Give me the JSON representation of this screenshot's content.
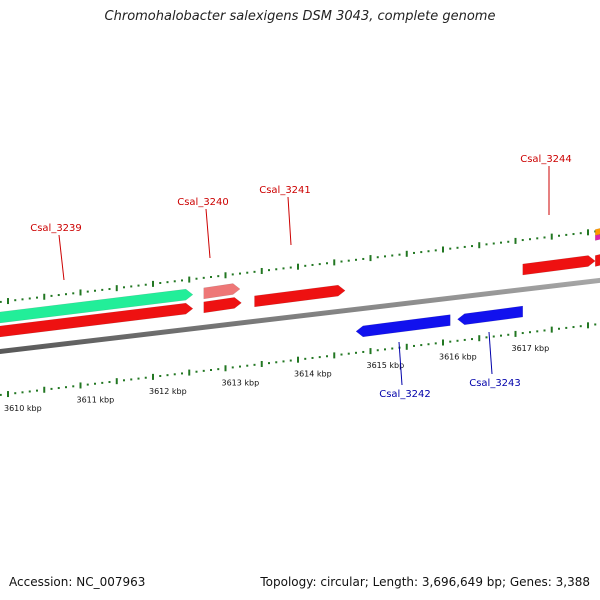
{
  "title": "Chromohalobacter salexigens DSM 3043, complete genome",
  "footer": {
    "accession": "Accession: NC_007963",
    "stats": "Topology: circular; Length: 3,696,649 bp; Genes: 3,388"
  },
  "colors": {
    "forward_label": "#cc0000",
    "reverse_label": "#0000aa",
    "tick": "#227722",
    "backbone": "#808080"
  },
  "outer_ticks": {
    "major_every_kbp": 0.5,
    "minor_every_kbp": 0.1
  },
  "scale_labels": [
    "3610 kbp",
    "3611 kbp",
    "3612 kbp",
    "3613 kbp",
    "3614 kbp",
    "3615 kbp",
    "3616 kbp",
    "3617 kbp"
  ],
  "genes": [
    {
      "label": "Csal_3239",
      "strand": "+",
      "start_kbp": 3609.8,
      "end_kbp": 3612.55,
      "color": "#ee1111"
    },
    {
      "label": "",
      "strand": "+",
      "start_kbp": 3609.8,
      "end_kbp": 3612.55,
      "color": "#22ee99"
    },
    {
      "label": "Csal_3240",
      "strand": "+",
      "start_kbp": 3612.7,
      "end_kbp": 3613.22,
      "color": "#ee1111"
    },
    {
      "label": "",
      "strand": "+",
      "start_kbp": 3612.7,
      "end_kbp": 3613.2,
      "color": "#ee7777"
    },
    {
      "label": "Csal_3241",
      "strand": "+",
      "start_kbp": 3613.4,
      "end_kbp": 3614.65,
      "color": "#ee1111"
    },
    {
      "label": "Csal_3242",
      "strand": "-",
      "start_kbp": 3614.8,
      "end_kbp": 3616.1,
      "color": "#1111ee"
    },
    {
      "label": "Csal_3243",
      "strand": "-",
      "start_kbp": 3616.2,
      "end_kbp": 3617.1,
      "color": "#1111ee"
    },
    {
      "label": "Csal_3244",
      "strand": "+",
      "start_kbp": 3617.1,
      "end_kbp": 3618.1,
      "color": "#ee1111"
    },
    {
      "label": "",
      "strand": "+",
      "start_kbp": 3618.1,
      "end_kbp": 3618.3,
      "color": "#ee1111"
    },
    {
      "label": "",
      "strand": "+",
      "start_kbp": 3618.1,
      "end_kbp": 3618.3,
      "color": "#ff9900"
    },
    {
      "label": "",
      "strand": "+",
      "start_kbp": 3618.1,
      "end_kbp": 3618.3,
      "color": "#dd22aa"
    }
  ]
}
